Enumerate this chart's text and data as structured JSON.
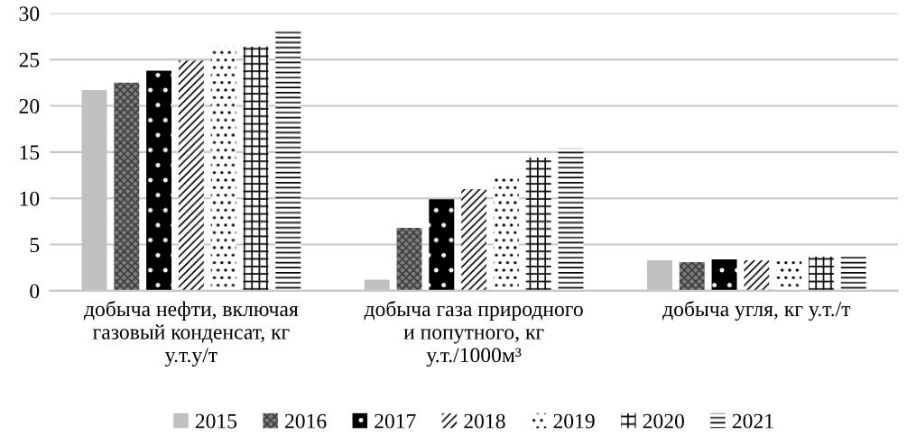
{
  "chart_data": {
    "type": "bar",
    "categories": [
      "добыча нефти, включая\nгазовый конденсат, кг\nу.т.у/т",
      "добыча газа природного\nи попутного, кг\nу.т./1000м³",
      "добыча угля, кг у.т./т"
    ],
    "series": [
      {
        "name": "2015",
        "color": "#c0c0c0",
        "values": [
          21.7,
          1.2,
          3.3
        ]
      },
      {
        "name": "2016",
        "color": "#7f7f7f",
        "values": [
          22.5,
          6.8,
          3.1
        ]
      },
      {
        "name": "2017",
        "color": "#000000",
        "values": [
          23.8,
          9.9,
          3.4
        ]
      },
      {
        "name": "2018",
        "color": "#000000",
        "values": [
          24.9,
          11.0,
          3.3
        ]
      },
      {
        "name": "2019",
        "color": "#000000",
        "values": [
          26.4,
          12.2,
          3.2
        ]
      },
      {
        "name": "2020",
        "color": "#000000",
        "values": [
          26.4,
          14.4,
          3.7
        ]
      },
      {
        "name": "2021",
        "color": "#000000",
        "values": [
          28.1,
          15.4,
          3.8
        ]
      }
    ],
    "ylim": [
      0,
      30
    ],
    "yticks": [
      0,
      5,
      10,
      15,
      20,
      25,
      30
    ],
    "grid": "y",
    "legend": "bottom"
  }
}
